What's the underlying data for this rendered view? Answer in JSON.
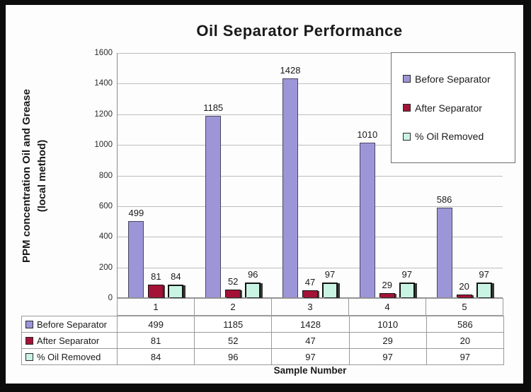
{
  "chart_data": {
    "type": "bar",
    "title": "Oil Separator Performance",
    "ylabel_line1": "PPM concentration Oil and Grease",
    "ylabel_line2": "(local method)",
    "xlabel": "Sample Number",
    "categories": [
      "1",
      "2",
      "3",
      "4",
      "5"
    ],
    "series": [
      {
        "name": "Before Separator",
        "color": "#9c96d8",
        "values": [
          499,
          1185,
          1428,
          1010,
          586
        ]
      },
      {
        "name": "After Separator",
        "color": "#a41337",
        "values": [
          81,
          52,
          47,
          29,
          20
        ]
      },
      {
        "name": "% Oil Removed",
        "color": "#c9f4e3",
        "values": [
          84,
          96,
          97,
          97,
          97
        ]
      }
    ],
    "ylim": [
      0,
      1600
    ],
    "yticks": [
      0,
      200,
      400,
      600,
      800,
      1000,
      1200,
      1400,
      1600
    ],
    "grid": true,
    "legend_position": "top-right",
    "data_table_shown": true
  },
  "colors": {
    "frame": "#0c0c0c",
    "background": "#fdfdfd",
    "gridline": "#bdbdbd",
    "axis": "#8c8c8c",
    "table_border": "#9a9a9a",
    "text": "#1a1a1a"
  }
}
